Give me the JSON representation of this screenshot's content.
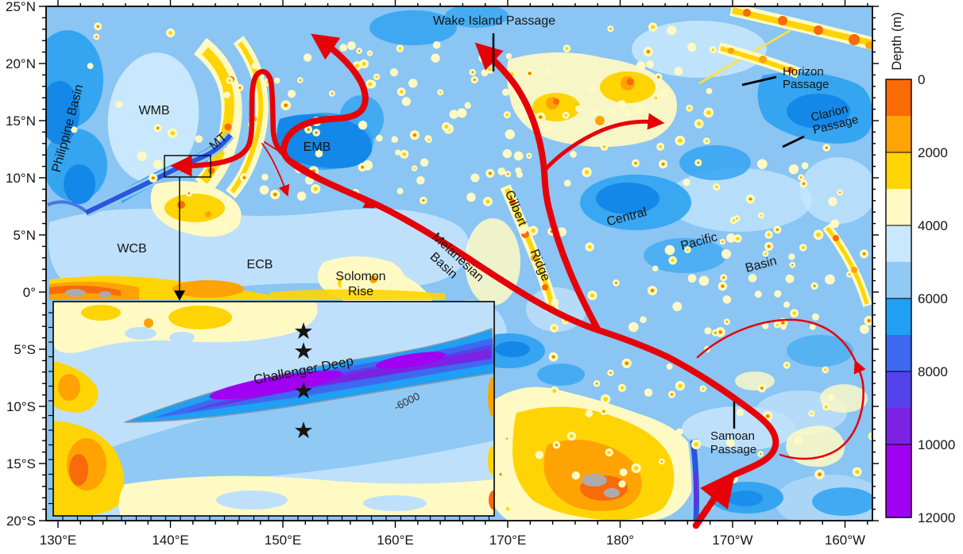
{
  "axes": {
    "x_ticks": [
      "130°E",
      "140°E",
      "150°E",
      "160°E",
      "170°E",
      "180°",
      "170°W",
      "160°W"
    ],
    "y_ticks": [
      "25°N",
      "20°N",
      "15°N",
      "10°N",
      "5°N",
      "0°",
      "5°S",
      "10°S",
      "15°S",
      "20°S"
    ]
  },
  "colorbar": {
    "title": "Depth (m)",
    "tick_labels": [
      "0",
      "2000",
      "4000",
      "6000",
      "8000",
      "10000",
      "12000"
    ],
    "segments": [
      {
        "color": "#FA6A05",
        "units": 1
      },
      {
        "color": "#FFA405",
        "units": 1
      },
      {
        "color": "#FFD405",
        "units": 1
      },
      {
        "color": "#FFFAC3",
        "units": 1
      },
      {
        "color": "#C9E8FD",
        "units": 1
      },
      {
        "color": "#8FC9F4",
        "units": 1
      },
      {
        "color": "#1FA0F2",
        "units": 1
      },
      {
        "color": "#3E68F0",
        "units": 1
      },
      {
        "color": "#5443EA",
        "units": 1
      },
      {
        "color": "#7B22E3",
        "units": 1
      },
      {
        "color": "#A001F2",
        "units": 2
      }
    ]
  },
  "map_labels": {
    "philippine_basin": "Philippine Basin",
    "wmb": "WMB",
    "emb": "EMB",
    "mt": "MT",
    "wcb": "WCB",
    "ecb": "ECB",
    "solomon_1": "Solomon",
    "solomon_2": "Rise",
    "melanesian_1": "Melanesian",
    "melanesian_2": "Basin",
    "gilbert_1": "Gilbert",
    "gilbert_2": "Ridge",
    "central": "Central",
    "pacific": "Pacific",
    "cp_basin": "Basin",
    "wake_island_passage": "Wake Island Passage",
    "horizon_1": "Horizon",
    "horizon_2": "Passage",
    "clarion_1": "Clarion",
    "clarion_2": "Passage",
    "samoan_1": "Samoan",
    "samoan_2": "Passage"
  },
  "inset": {
    "label": "Challenger Deep",
    "contour_label": "-6000",
    "star_count": 4
  },
  "palette": {
    "base": "#8AC5F3",
    "light": "#C9E8FD",
    "lighter": "#BFE0FA",
    "mid": "#8FC9F4",
    "deep1": "#35A5F1",
    "deep2": "#1488E8",
    "trench": "#2B55DC",
    "pale": "#FFFAC3",
    "gold": "#FFD405",
    "org": "#FFA305",
    "dorg": "#F96A0A",
    "gray": "#ABABAB",
    "red": "#E60008",
    "lens1": "#1FA0F2",
    "lens2": "#3E68F0",
    "lens3": "#5443EA",
    "lens4": "#7B22E3",
    "lens5": "#A001F2"
  }
}
